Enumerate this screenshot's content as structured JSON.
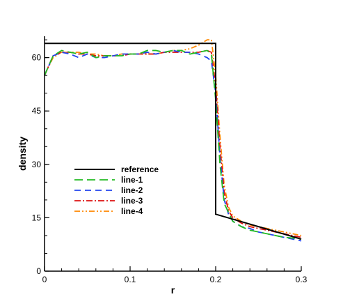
{
  "chart_data": {
    "type": "line",
    "xlabel": "r",
    "ylabel": "density",
    "xlim": [
      0,
      0.3
    ],
    "ylim": [
      0,
      66
    ],
    "x_ticks": [
      0,
      0.1,
      0.2,
      0.3
    ],
    "x_tick_labels": [
      "0",
      "0.1",
      "0.2",
      "0.3"
    ],
    "y_ticks": [
      0,
      15,
      30,
      45,
      60
    ],
    "y_tick_labels": [
      "0",
      "15",
      "30",
      "45",
      "60"
    ],
    "grid": false,
    "legend_position": "left-center",
    "series": [
      {
        "name": "reference",
        "color": "#000000",
        "dash": "solid",
        "points": [
          [
            0,
            64
          ],
          [
            0.2,
            64
          ],
          [
            0.2,
            16
          ],
          [
            0.3,
            9
          ]
        ]
      },
      {
        "name": "line-1",
        "color": "#22bb22",
        "dash": "long-dash",
        "points": [
          [
            0,
            55
          ],
          [
            0.01,
            60.5
          ],
          [
            0.02,
            62
          ],
          [
            0.03,
            61.5
          ],
          [
            0.04,
            61
          ],
          [
            0.05,
            61.5
          ],
          [
            0.06,
            60
          ],
          [
            0.07,
            60.5
          ],
          [
            0.08,
            60.5
          ],
          [
            0.09,
            60.5
          ],
          [
            0.1,
            61
          ],
          [
            0.11,
            61
          ],
          [
            0.12,
            62
          ],
          [
            0.13,
            62
          ],
          [
            0.14,
            61.5
          ],
          [
            0.15,
            62
          ],
          [
            0.16,
            62
          ],
          [
            0.17,
            61
          ],
          [
            0.18,
            61.5
          ],
          [
            0.19,
            62
          ],
          [
            0.195,
            61
          ],
          [
            0.2,
            48
          ],
          [
            0.205,
            30
          ],
          [
            0.21,
            19
          ],
          [
            0.22,
            14
          ],
          [
            0.23,
            12.5
          ],
          [
            0.24,
            11.5
          ],
          [
            0.25,
            11
          ],
          [
            0.26,
            10.5
          ],
          [
            0.27,
            10
          ],
          [
            0.28,
            9.5
          ],
          [
            0.29,
            9.3
          ],
          [
            0.3,
            9
          ]
        ]
      },
      {
        "name": "line-2",
        "color": "#2244ee",
        "dash": "medium-dash",
        "points": [
          [
            0,
            55
          ],
          [
            0.01,
            60.5
          ],
          [
            0.02,
            61.5
          ],
          [
            0.03,
            61
          ],
          [
            0.04,
            60
          ],
          [
            0.05,
            61
          ],
          [
            0.06,
            60
          ],
          [
            0.07,
            60
          ],
          [
            0.08,
            60.5
          ],
          [
            0.09,
            61
          ],
          [
            0.1,
            61
          ],
          [
            0.11,
            61
          ],
          [
            0.12,
            61.5
          ],
          [
            0.13,
            61
          ],
          [
            0.14,
            61.5
          ],
          [
            0.15,
            62
          ],
          [
            0.16,
            61.5
          ],
          [
            0.17,
            61.5
          ],
          [
            0.18,
            61
          ],
          [
            0.19,
            60
          ],
          [
            0.195,
            59
          ],
          [
            0.2,
            50
          ],
          [
            0.205,
            32
          ],
          [
            0.21,
            20
          ],
          [
            0.215,
            16
          ],
          [
            0.22,
            14
          ],
          [
            0.23,
            12.5
          ],
          [
            0.24,
            12
          ],
          [
            0.25,
            11
          ],
          [
            0.26,
            10.5
          ],
          [
            0.27,
            10
          ],
          [
            0.28,
            9.5
          ],
          [
            0.29,
            9
          ],
          [
            0.3,
            8.5
          ]
        ]
      },
      {
        "name": "line-3",
        "color": "#dd1111",
        "dash": "dash-dot",
        "points": [
          [
            0,
            55
          ],
          [
            0.01,
            60.5
          ],
          [
            0.02,
            61.5
          ],
          [
            0.03,
            61.5
          ],
          [
            0.04,
            61
          ],
          [
            0.05,
            61
          ],
          [
            0.06,
            60.5
          ],
          [
            0.07,
            60.5
          ],
          [
            0.08,
            60.5
          ],
          [
            0.09,
            60.5
          ],
          [
            0.1,
            61
          ],
          [
            0.11,
            61
          ],
          [
            0.12,
            61
          ],
          [
            0.13,
            61
          ],
          [
            0.14,
            61.5
          ],
          [
            0.15,
            61.5
          ],
          [
            0.16,
            61.5
          ],
          [
            0.17,
            61.5
          ],
          [
            0.18,
            61.5
          ],
          [
            0.19,
            62
          ],
          [
            0.195,
            61.5
          ],
          [
            0.2,
            52
          ],
          [
            0.205,
            35
          ],
          [
            0.21,
            22
          ],
          [
            0.215,
            17
          ],
          [
            0.22,
            15
          ],
          [
            0.23,
            13.5
          ],
          [
            0.24,
            12.5
          ],
          [
            0.25,
            12
          ],
          [
            0.26,
            11.5
          ],
          [
            0.27,
            11
          ],
          [
            0.28,
            10.5
          ],
          [
            0.29,
            10
          ],
          [
            0.3,
            9.5
          ]
        ]
      },
      {
        "name": "line-4",
        "color": "#ff8800",
        "dash": "dash-dot-dot",
        "points": [
          [
            0,
            55
          ],
          [
            0.01,
            60
          ],
          [
            0.02,
            61.5
          ],
          [
            0.03,
            61.5
          ],
          [
            0.04,
            61.5
          ],
          [
            0.05,
            61
          ],
          [
            0.06,
            61
          ],
          [
            0.07,
            60.5
          ],
          [
            0.08,
            60.5
          ],
          [
            0.09,
            61
          ],
          [
            0.1,
            61
          ],
          [
            0.11,
            61
          ],
          [
            0.12,
            61
          ],
          [
            0.13,
            61
          ],
          [
            0.14,
            61.5
          ],
          [
            0.15,
            62
          ],
          [
            0.16,
            62
          ],
          [
            0.17,
            62.5
          ],
          [
            0.18,
            63.5
          ],
          [
            0.19,
            65
          ],
          [
            0.195,
            65
          ],
          [
            0.2,
            55
          ],
          [
            0.205,
            38
          ],
          [
            0.21,
            24
          ],
          [
            0.215,
            18
          ],
          [
            0.22,
            15.5
          ],
          [
            0.23,
            14
          ],
          [
            0.24,
            13
          ],
          [
            0.25,
            12.5
          ],
          [
            0.26,
            12
          ],
          [
            0.27,
            11.5
          ],
          [
            0.28,
            11
          ],
          [
            0.29,
            10.5
          ],
          [
            0.3,
            10
          ]
        ]
      }
    ]
  }
}
